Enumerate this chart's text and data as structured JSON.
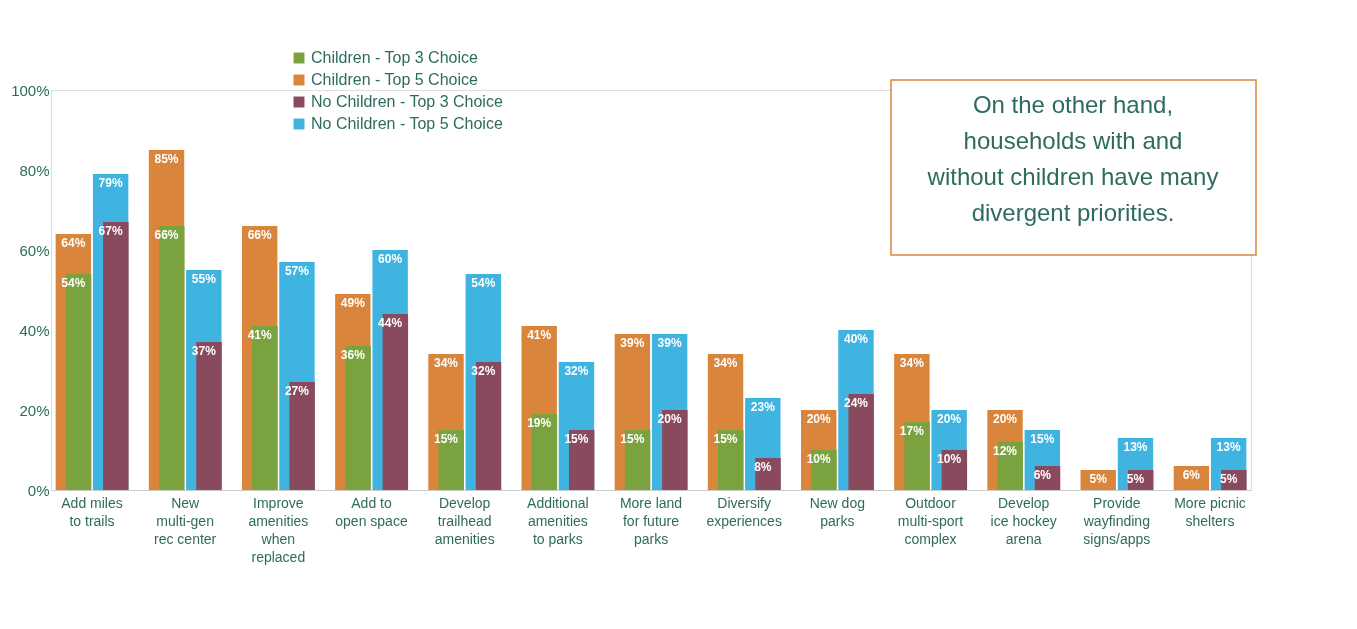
{
  "chart_data": {
    "type": "bar",
    "categories": [
      "Add miles\nto trails",
      "New\nmulti-gen\nrec center",
      "Improve\namenities\nwhen\nreplaced",
      "Add to\nopen space",
      "Develop\ntrailhead\namenities",
      "Additional\namenities\nto parks",
      "More land\nfor future\nparks",
      "Diversify\nexperiences",
      "New dog\nparks",
      "Outdoor\nmulti-sport\ncomplex",
      "Develop\nice hockey\narena",
      "Provide\nwayfinding\nsigns/apps",
      "More picnic\nshelters"
    ],
    "series": [
      {
        "name": "Children - Top 3 Choice",
        "color": "#7aa33f",
        "values": [
          54,
          66,
          41,
          36,
          15,
          19,
          15,
          15,
          10,
          17,
          12,
          null,
          null
        ],
        "value_labels": [
          "54%",
          "66%",
          "41%",
          "36%",
          "15%",
          "19%",
          "15%",
          "15%",
          "10%",
          "17%",
          "12%",
          null,
          null
        ]
      },
      {
        "name": "Children - Top 5 Choice",
        "color": "#d9853b",
        "values": [
          64,
          85,
          66,
          49,
          34,
          41,
          39,
          34,
          20,
          34,
          20,
          5,
          6
        ],
        "value_labels": [
          "64%",
          "85%",
          "66%",
          "49%",
          "34%",
          "41%",
          "39%",
          "34%",
          "20%",
          "34%",
          "20%",
          "5%",
          "6%"
        ]
      },
      {
        "name": "No Children - Top 3 Choice",
        "color": "#8a4a5e",
        "values": [
          67,
          37,
          27,
          44,
          32,
          15,
          20,
          8,
          24,
          10,
          6,
          5,
          5
        ],
        "value_labels": [
          "67%",
          "37%",
          "27%",
          "44%",
          "32%",
          "15%",
          "20%",
          "8%",
          "24%",
          "10%",
          "6%",
          "5%",
          "5%"
        ]
      },
      {
        "name": "No Children - Top 5 Choice",
        "color": "#3fb4e0",
        "values": [
          79,
          55,
          57,
          60,
          54,
          32,
          39,
          23,
          40,
          20,
          15,
          13,
          13
        ],
        "value_labels": [
          "79%",
          "55%",
          "57%",
          "60%",
          "54%",
          "32%",
          "39%",
          "23%",
          "40%",
          "20%",
          "15%",
          "13%",
          "13%"
        ]
      }
    ],
    "ylim": [
      0,
      100
    ],
    "yticks": [
      {
        "value": 0,
        "label": "0%"
      },
      {
        "value": 20,
        "label": "20%"
      },
      {
        "value": 40,
        "label": "40%"
      },
      {
        "value": 60,
        "label": "60%"
      },
      {
        "value": 80,
        "label": "80%"
      },
      {
        "value": 100,
        "label": "100%"
      }
    ],
    "grid": false,
    "legend": "top",
    "annotations": [
      "On the other hand, households with and without children have many divergent priorities."
    ]
  }
}
